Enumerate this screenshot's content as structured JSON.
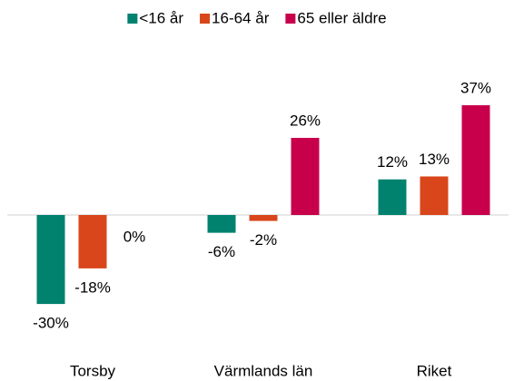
{
  "chart_data": {
    "type": "bar",
    "categories": [
      "Torsby",
      "Värmlands län",
      "Riket"
    ],
    "series": [
      {
        "name": "<16 år",
        "color": "#00826f",
        "values": [
          -30,
          -6,
          12
        ],
        "value_labels": [
          "-30%",
          "-6%",
          "12%"
        ]
      },
      {
        "name": "16-64 år",
        "color": "#d9461b",
        "values": [
          -18,
          -2,
          13
        ],
        "value_labels": [
          "-18%",
          "-2%",
          "13%"
        ]
      },
      {
        "name": "65 eller äldre",
        "color": "#c8004c",
        "values": [
          0,
          26,
          37
        ],
        "value_labels": [
          "0%",
          "26%",
          "37%"
        ]
      }
    ],
    "legend": "top"
  }
}
